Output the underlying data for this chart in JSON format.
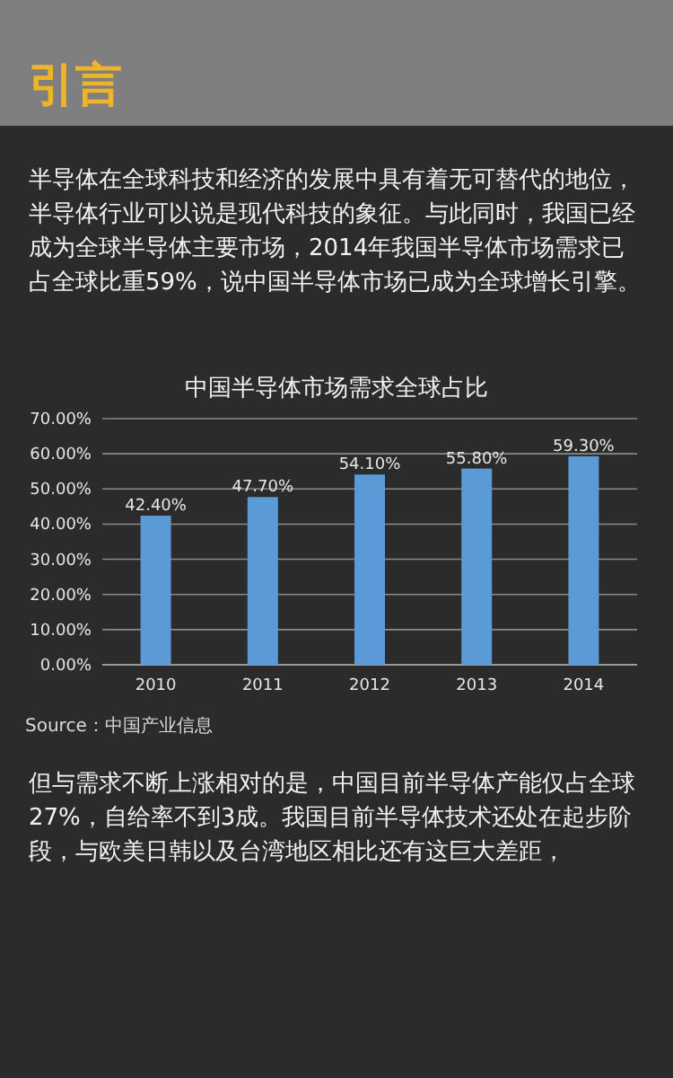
{
  "chart_data": {
    "type": "bar",
    "title": "中国半导体市场需求全球占比",
    "categories": [
      "2010",
      "2011",
      "2012",
      "2013",
      "2014"
    ],
    "values": [
      42.4,
      47.7,
      54.1,
      55.8,
      59.3
    ],
    "value_labels": [
      "42.40%",
      "47.70%",
      "54.10%",
      "55.80%",
      "59.30%"
    ],
    "color": "#5b9bd5",
    "ylim": [
      0,
      70
    ],
    "yticks": [
      {
        "value": 0,
        "label": "0.00%"
      },
      {
        "value": 10,
        "label": "10.00%"
      },
      {
        "value": 20,
        "label": "20.00%"
      },
      {
        "value": 30,
        "label": "30.00%"
      },
      {
        "value": 40,
        "label": "40.00%"
      },
      {
        "value": 50,
        "label": "50.00%"
      },
      {
        "value": 60,
        "label": "60.00%"
      },
      {
        "value": 70,
        "label": "70.00%"
      }
    ],
    "grid": "y",
    "annotations": [
      "引言",
      "半导体在全球科技和经济的发展中具有着无可替代的地位，半导体行业可以说是现代科技的象征。与此同时，我国已经成为全球半导体主要市场，2014年我国半导体市场需求已占全球比重59%，说中国半导体市场已成为全球增长引擎。",
      "Source：中国产业信息",
      "但与需求不断上涨相对的是，中国目前半导体产能仅占全球27%，自给率不到3成。我国目前半导体技术还处在起步阶段，与欧美日韩以及台湾地区相比还有这巨大差距，"
    ]
  }
}
